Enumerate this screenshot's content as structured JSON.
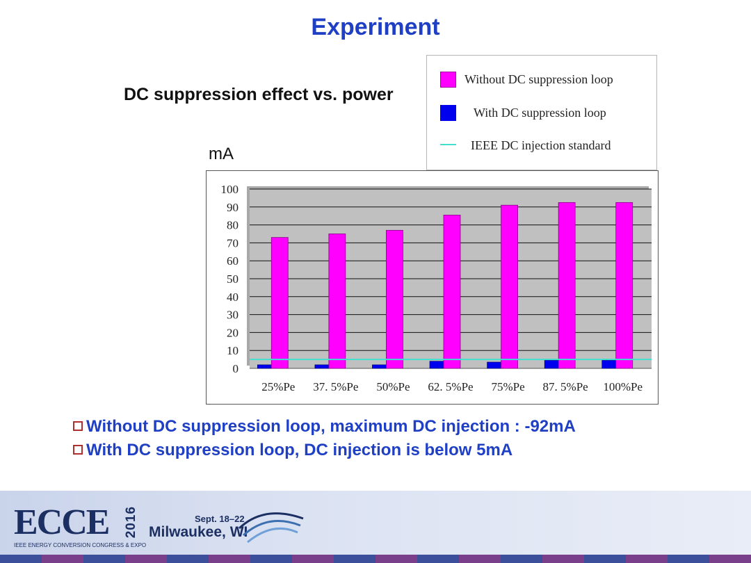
{
  "slide": {
    "title": "Experiment",
    "subtitle": "DC suppression effect vs. power",
    "unit_label": "mA"
  },
  "bullets": [
    "Without DC suppression loop, maximum DC injection : -92mA",
    "With DC suppression loop, DC injection is below 5mA"
  ],
  "footer": {
    "logo_text": "ECCE",
    "year": "2016",
    "tagline": "IEEE ENERGY CONVERSION CONGRESS & EXPO",
    "dates": "Sept. 18–22",
    "city": "Milwaukee, WI"
  },
  "colors": {
    "title": "#1f3fc4",
    "without": "#ff00ff",
    "with": "#0000ee",
    "standard": "#40e0d0",
    "plot_bg": "#c0c0c0"
  },
  "chart_data": {
    "type": "bar",
    "title": "DC suppression effect vs. power",
    "ylabel": "mA",
    "xlabel": "",
    "ylim": [
      0,
      100
    ],
    "yticks": [
      0,
      10,
      20,
      30,
      40,
      50,
      60,
      70,
      80,
      90,
      100
    ],
    "categories": [
      "25%Pe",
      "37. 5%Pe",
      "50%Pe",
      "62. 5%Pe",
      "75%Pe",
      "87. 5%Pe",
      "100%Pe"
    ],
    "series": [
      {
        "name": "With  DC suppression loop",
        "values": [
          2,
          2,
          2,
          4,
          3.5,
          4.5,
          4.5
        ],
        "color": "#0000ee"
      },
      {
        "name": "Without  DC suppression loop",
        "values": [
          73,
          75,
          77,
          85.5,
          91,
          92.5,
          92.5
        ],
        "color": "#ff00ff"
      }
    ],
    "reference_line": {
      "name": "IEEE DC injection standard",
      "value": 5,
      "color": "#40e0d0"
    },
    "legend": {
      "position": "top-right",
      "entries": [
        "Without  DC suppression loop",
        "With  DC suppression loop",
        "IEEE DC injection standard"
      ]
    },
    "grid": true
  }
}
